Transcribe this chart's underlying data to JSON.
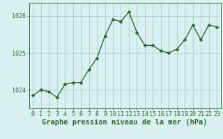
{
  "x": [
    0,
    1,
    2,
    3,
    4,
    5,
    6,
    7,
    8,
    9,
    10,
    11,
    12,
    13,
    14,
    15,
    16,
    17,
    18,
    19,
    20,
    21,
    22,
    23
  ],
  "y": [
    1023.85,
    1024.0,
    1023.95,
    1023.8,
    1024.15,
    1024.2,
    1024.2,
    1024.55,
    1024.85,
    1025.45,
    1025.9,
    1025.85,
    1026.1,
    1025.55,
    1025.2,
    1025.2,
    1025.05,
    1025.0,
    1025.1,
    1025.35,
    1025.75,
    1025.35,
    1025.75,
    1025.7
  ],
  "line_color": "#2d6a2d",
  "marker_color": "#2d6a2d",
  "bg_color": "#d8f0f0",
  "grid_color": "#aacccc",
  "axis_color": "#2d6a2d",
  "xlabel": "Graphe pression niveau de la mer (hPa)",
  "xlabel_color": "#2d6a2d",
  "ylim": [
    1023.5,
    1026.35
  ],
  "yticks": [
    1024,
    1025,
    1026
  ],
  "xticks": [
    0,
    1,
    2,
    3,
    4,
    5,
    6,
    7,
    8,
    9,
    10,
    11,
    12,
    13,
    14,
    15,
    16,
    17,
    18,
    19,
    20,
    21,
    22,
    23
  ],
  "tick_font_size": 6,
  "xlabel_font_size": 7.5,
  "marker_size": 2.5,
  "line_width": 1.0
}
